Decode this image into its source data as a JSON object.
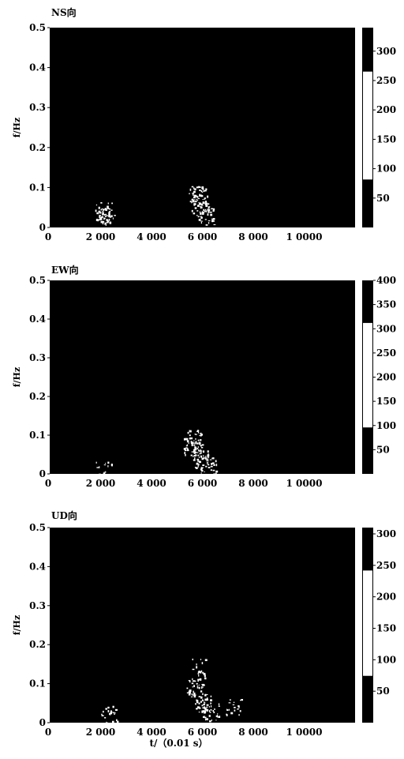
{
  "chart_data": [
    {
      "type": "heatmap",
      "title": "NS向",
      "ylabel": "f/Hz",
      "xlabel": "",
      "xlim": [
        0,
        12000
      ],
      "ylim": [
        0,
        0.5
      ],
      "xticks": [
        "0",
        "2 000",
        "4 000",
        "6 000",
        "8 000",
        "1 0000"
      ],
      "xtick_values": [
        0,
        2000,
        4000,
        6000,
        8000,
        10000
      ],
      "yticks": [
        "0",
        "0.1",
        "0.2",
        "0.3",
        "0.4",
        "0.5"
      ],
      "ytick_values": [
        0,
        0.1,
        0.2,
        0.3,
        0.4,
        0.5
      ],
      "colorbar_ticks": [
        "300",
        "250",
        "200",
        "150",
        "100",
        "50"
      ],
      "colorbar_values": [
        300,
        250,
        200,
        150,
        100,
        50
      ],
      "colorbar_range": [
        0,
        340
      ],
      "grid": false,
      "hotspots": [
        {
          "t": 2200,
          "f": 0.03,
          "intensity": 70
        },
        {
          "t": 2100,
          "f": 0.04,
          "intensity": 60
        },
        {
          "t": 5900,
          "f": 0.06,
          "intensity": 90
        },
        {
          "t": 5800,
          "f": 0.08,
          "intensity": 75
        },
        {
          "t": 6100,
          "f": 0.03,
          "intensity": 70
        }
      ]
    },
    {
      "type": "heatmap",
      "title": "EW向",
      "ylabel": "f/Hz",
      "xlabel": "",
      "xlim": [
        0,
        12000
      ],
      "ylim": [
        0,
        0.5
      ],
      "xticks": [
        "0",
        "2 000",
        "4 000",
        "6 000",
        "8 000",
        "1 0000"
      ],
      "xtick_values": [
        0,
        2000,
        4000,
        6000,
        8000,
        10000
      ],
      "yticks": [
        "0",
        "0.1",
        "0.2",
        "0.3",
        "0.4",
        "0.5"
      ],
      "ytick_values": [
        0,
        0.1,
        0.2,
        0.3,
        0.4,
        0.5
      ],
      "colorbar_ticks": [
        "400",
        "350",
        "300",
        "250",
        "200",
        "150",
        "100",
        "50"
      ],
      "colorbar_values": [
        400,
        350,
        300,
        250,
        200,
        150,
        100,
        50
      ],
      "colorbar_range": [
        0,
        400
      ],
      "grid": false,
      "hotspots": [
        {
          "t": 2150,
          "f": 0.01,
          "intensity": 40
        },
        {
          "t": 5600,
          "f": 0.07,
          "intensity": 90
        },
        {
          "t": 5900,
          "f": 0.04,
          "intensity": 80
        },
        {
          "t": 5700,
          "f": 0.09,
          "intensity": 60
        },
        {
          "t": 6200,
          "f": 0.02,
          "intensity": 65
        }
      ]
    },
    {
      "type": "heatmap",
      "title": "UD向",
      "ylabel": "f/Hz",
      "xlabel": "t/（0.01 s）",
      "xlim": [
        0,
        12000
      ],
      "ylim": [
        0,
        0.5
      ],
      "xticks": [
        "0",
        "2 000",
        "4 000",
        "6 000",
        "8 000",
        "1 0000"
      ],
      "xtick_values": [
        0,
        2000,
        4000,
        6000,
        8000,
        10000
      ],
      "yticks": [
        "0",
        "0.1",
        "0.2",
        "0.3",
        "0.4",
        "0.5"
      ],
      "ytick_values": [
        0,
        0.1,
        0.2,
        0.3,
        0.4,
        0.5
      ],
      "colorbar_ticks": [
        "300",
        "250",
        "200",
        "150",
        "100",
        "50"
      ],
      "colorbar_values": [
        300,
        250,
        200,
        150,
        100,
        50
      ],
      "colorbar_range": [
        0,
        310
      ],
      "grid": false,
      "hotspots": [
        {
          "t": 2300,
          "f": 0.02,
          "intensity": 45
        },
        {
          "t": 5700,
          "f": 0.09,
          "intensity": 90
        },
        {
          "t": 6000,
          "f": 0.05,
          "intensity": 85
        },
        {
          "t": 6300,
          "f": 0.03,
          "intensity": 60
        },
        {
          "t": 7200,
          "f": 0.04,
          "intensity": 40
        },
        {
          "t": 5900,
          "f": 0.14,
          "intensity": 40
        }
      ]
    }
  ]
}
